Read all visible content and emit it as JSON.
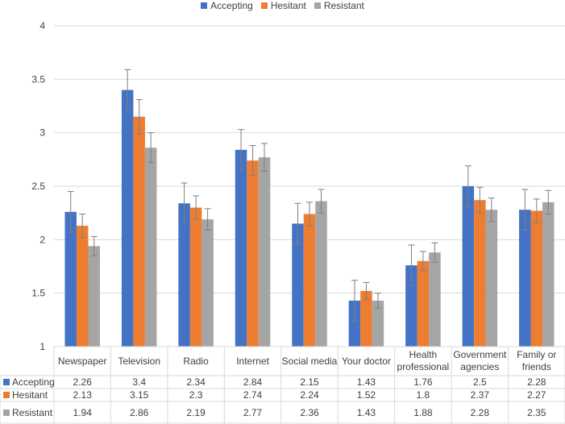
{
  "chart_data": {
    "type": "bar",
    "title": "",
    "xlabel": "",
    "ylabel": "",
    "ylim": [
      1,
      4
    ],
    "yticks": [
      "1",
      "1.5",
      "2",
      "2.5",
      "3",
      "3.5",
      "4"
    ],
    "ytick_values": [
      1,
      1.5,
      2,
      2.5,
      3,
      3.5,
      4
    ],
    "categories": [
      [
        "Newspaper"
      ],
      [
        "Television"
      ],
      [
        "Radio"
      ],
      [
        "Internet"
      ],
      [
        "Social media"
      ],
      [
        "Your doctor"
      ],
      [
        "Health",
        "professional"
      ],
      [
        "Government",
        "agencies"
      ],
      [
        "Family or",
        "friends"
      ]
    ],
    "series": [
      {
        "name": "Accepting",
        "color": "#4472C4",
        "values": [
          2.26,
          3.4,
          2.34,
          2.84,
          2.15,
          1.43,
          1.76,
          2.5,
          2.28
        ],
        "labels": [
          "2.26",
          "3.4",
          "2.34",
          "2.84",
          "2.15",
          "1.43",
          "1.76",
          "2.5",
          "2.28"
        ],
        "errors": [
          0.19,
          0.19,
          0.19,
          0.19,
          0.19,
          0.19,
          0.19,
          0.19,
          0.19
        ]
      },
      {
        "name": "Hesitant",
        "color": "#ED7D31",
        "values": [
          2.13,
          3.15,
          2.3,
          2.74,
          2.24,
          1.52,
          1.8,
          2.37,
          2.27
        ],
        "labels": [
          "2.13",
          "3.15",
          "2.3",
          "2.74",
          "2.24",
          "1.52",
          "1.8",
          "2.37",
          "2.27"
        ],
        "errors": [
          0.11,
          0.16,
          0.11,
          0.14,
          0.11,
          0.08,
          0.09,
          0.12,
          0.11
        ]
      },
      {
        "name": "Resistant",
        "color": "#A5A5A5",
        "values": [
          1.94,
          2.86,
          2.19,
          2.77,
          2.36,
          1.43,
          1.88,
          2.28,
          2.35
        ],
        "labels": [
          "1.94",
          "2.86",
          "2.19",
          "2.77",
          "2.36",
          "1.43",
          "1.88",
          "2.28",
          "2.35"
        ],
        "errors": [
          0.09,
          0.14,
          0.1,
          0.13,
          0.11,
          0.07,
          0.09,
          0.11,
          0.11
        ]
      }
    ],
    "legend_position": "top-center",
    "grid": true,
    "data_table": true
  }
}
